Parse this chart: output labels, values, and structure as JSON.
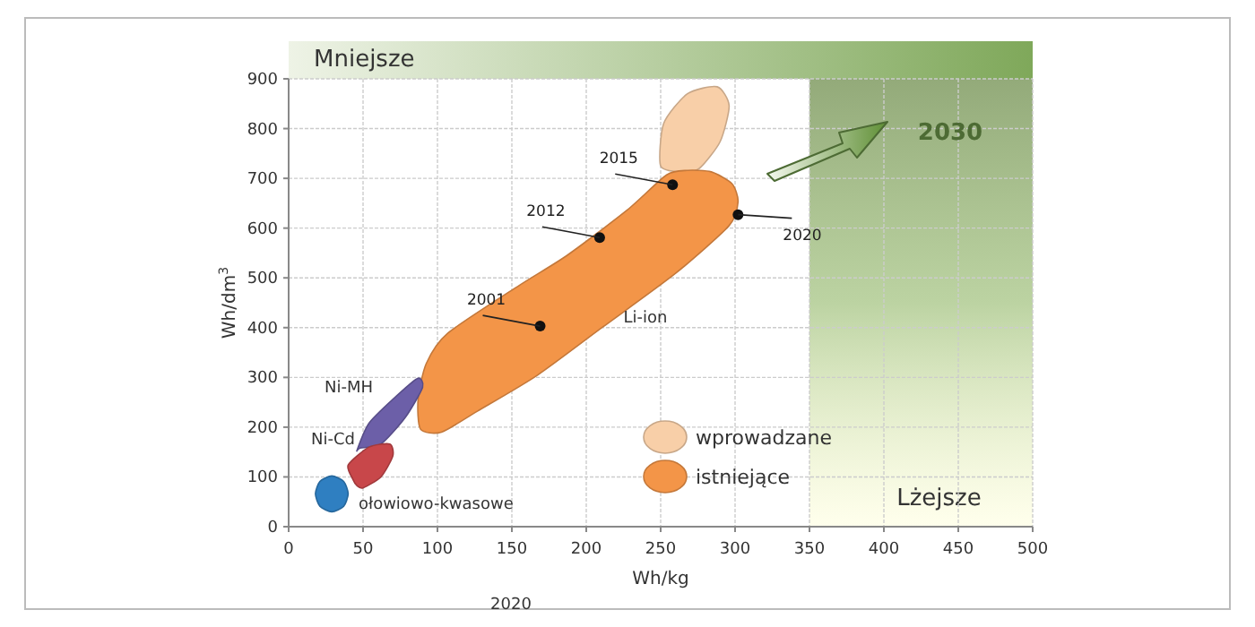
{
  "chart_data": {
    "type": "area",
    "xlabel": "Wh/kg",
    "ylabel": "Wh/dm$^{3}$",
    "xlim": [
      0,
      500
    ],
    "ylim": [
      0,
      900
    ],
    "xticks": [
      0,
      50,
      100,
      150,
      200,
      250,
      300,
      350,
      400,
      450,
      500
    ],
    "yticks": [
      0,
      100,
      200,
      300,
      400,
      500,
      600,
      700,
      800,
      900
    ],
    "grid": true,
    "legend": "bottom right",
    "bands": [
      {
        "axis": "x",
        "from": 350,
        "to": 500,
        "label": "Lżejsze",
        "color": "#9fc07a"
      }
    ],
    "series": [
      {
        "name": "wprowadzane",
        "color": "#f8cfa8",
        "x": [
          250,
          252,
          268,
          288,
          296,
          290,
          276,
          264
        ],
        "values": [
          725,
          810,
          870,
          884,
          846,
          774,
          720,
          713
        ]
      },
      {
        "name": "istniejące",
        "color": "#f39548",
        "x": [
          88.6,
          102.7,
          126.8,
          167,
          211,
          260,
          296,
          302,
          298,
          284,
          268,
          254,
          227,
          187,
          155,
          107,
          92.5,
          87
        ],
        "values": [
          196,
          190,
          232,
          304,
          401,
          509,
          605,
          653,
          689,
          713,
          716,
          707,
          635,
          545,
          485,
          389,
          328,
          256
        ]
      },
      {
        "color": "#6c5fa8",
        "x": [
          46,
          54,
          70,
          86.6,
          90,
          78.5,
          62,
          48
        ],
        "values": [
          154,
          208,
          256,
          298,
          280,
          220,
          166,
          158
        ]
      },
      {
        "color": "#c8474a",
        "x": [
          43,
          40,
          54,
          68,
          70,
          62,
          50,
          46
        ],
        "values": [
          96,
          124,
          160,
          166,
          142,
          100,
          78,
          82
        ]
      },
      {
        "color": "#2f7fc1",
        "x": [
          40,
          37,
          29,
          21,
          18,
          21,
          29,
          37
        ],
        "values": [
          66,
          91,
          102,
          91,
          66,
          41,
          30,
          41
        ]
      },
      {
        "type": "scatter",
        "marker": "circle",
        "color": "#111111",
        "x": [
          169,
          209,
          258,
          302
        ],
        "values": [
          403,
          581,
          687,
          627
        ]
      }
    ],
    "annotations": [
      {
        "text": "2001",
        "x": 169,
        "y": 403
      },
      {
        "text": "2012",
        "x": 209,
        "y": 581
      },
      {
        "text": "2015",
        "x": 258,
        "y": 687
      },
      {
        "text": "2020",
        "x": 302,
        "y": 627
      },
      "Li-ion",
      "Ni-MH",
      "Ni-Cd",
      "ołowiowo-kwasowe",
      "Mniejsze",
      "2030",
      "2020"
    ]
  }
}
